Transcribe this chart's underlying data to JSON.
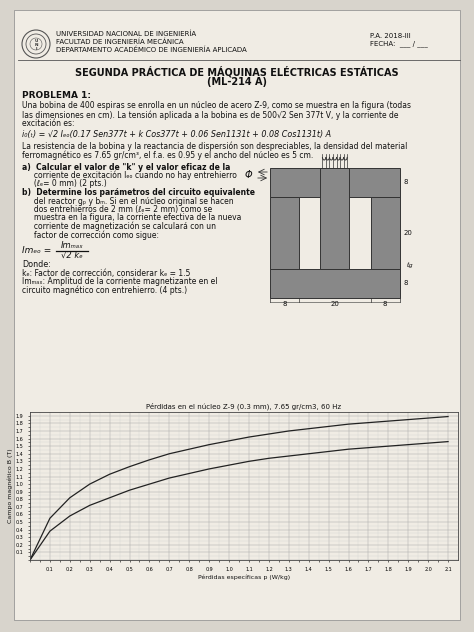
{
  "bg_color": "#d8d4cc",
  "page_bg": "#f0ece4",
  "header": {
    "university": "UNIVERSIDAD NACIONAL DE INGENIERÍA",
    "faculty": "FACULTAD DE INGENIERÍA MECÁNICA",
    "dept": "DEPARTAMENTO ACADÉMICO DE INGENIERÍA APLICADA",
    "pa": "P.A. 2018-III",
    "fecha": "FECHA:  ___ / ___"
  },
  "title_line1": "SEGUNDA PRÁCTICA DE MÁQUINAS ELÉCTRICAS ESTÁTICAS",
  "title_line2": "(ML-214 A)",
  "problem_title": "PROBLEMA 1:",
  "problem_text1": "Una bobina de 400 espiras se enrolla en un núcleo de acero Z-9, como se muestra en la figura (todas",
  "problem_text2": "las dimensiones en cm). La tensión aplicada a la bobina es de 500√2 Sen 377t V, y la corriente de",
  "problem_text3": "excitación es:",
  "formula1": "i₀(ₜ) = √2 Iₑₒ(0.17 Sen377t + k Cos377t + 0.06 Sen1131t + 0.08 Cos1131t) A",
  "problem_text4": "La resistencia de la bobina y la reactancia de dispersión son despreciables, la densidad del material",
  "problem_text5": "ferromagnético es 7.65 gr/cm³, el f.a. es 0.95 y el ancho del núcleo es 5 cm.",
  "graph_title": "Pérdidas en el núcleo Z-9 (0.3 mm), 7.65 gr/cm3, 60 Hz",
  "graph_xlabel": "Pérdidas específicas p (W/kg)",
  "graph_ylabel": "Campo magnético B (T)",
  "curve1_x": [
    0.0,
    0.1,
    0.2,
    0.3,
    0.4,
    0.5,
    0.6,
    0.7,
    0.8,
    0.9,
    1.0,
    1.1,
    1.2,
    1.3,
    1.4,
    1.5,
    1.6,
    1.7,
    1.8,
    1.9,
    2.0,
    2.1
  ],
  "curve1_y": [
    0.0,
    0.38,
    0.58,
    0.72,
    0.82,
    0.92,
    1.0,
    1.08,
    1.14,
    1.2,
    1.25,
    1.3,
    1.34,
    1.37,
    1.4,
    1.43,
    1.46,
    1.48,
    1.5,
    1.52,
    1.54,
    1.56
  ],
  "curve2_x": [
    0.0,
    0.1,
    0.2,
    0.3,
    0.4,
    0.5,
    0.6,
    0.7,
    0.8,
    0.9,
    1.0,
    1.1,
    1.2,
    1.3,
    1.4,
    1.5,
    1.6,
    1.7,
    1.8,
    1.9,
    2.0,
    2.1
  ],
  "curve2_y": [
    0.0,
    0.55,
    0.82,
    1.0,
    1.13,
    1.23,
    1.32,
    1.4,
    1.46,
    1.52,
    1.57,
    1.62,
    1.66,
    1.7,
    1.73,
    1.76,
    1.79,
    1.81,
    1.83,
    1.85,
    1.87,
    1.89
  ]
}
